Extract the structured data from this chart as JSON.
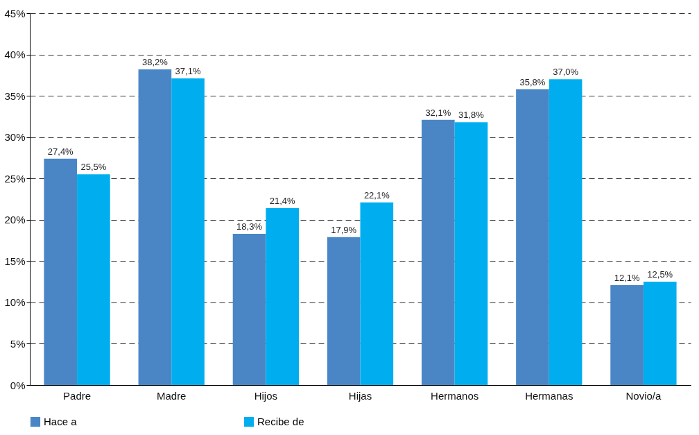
{
  "chart_data": {
    "type": "bar",
    "categories": [
      "Padre",
      "Madre",
      "Hijos",
      "Hijas",
      "Hermanos",
      "Hermanas",
      "Novio/a"
    ],
    "series": [
      {
        "name": "Hace a",
        "color": "#4a86c5",
        "values": [
          27.4,
          38.2,
          18.3,
          17.9,
          32.1,
          35.8,
          12.1
        ],
        "value_labels": [
          "27,4%",
          "38,2%",
          "18,3%",
          "17,9%",
          "32,1%",
          "35,8%",
          "12,1%"
        ]
      },
      {
        "name": "Recibe de",
        "color": "#00aeef",
        "values": [
          25.5,
          37.1,
          21.4,
          22.1,
          31.8,
          37.0,
          12.5
        ],
        "value_labels": [
          "25,5%",
          "37,1%",
          "21,4%",
          "22,1%",
          "31,8%",
          "37,0%",
          "12,5%"
        ]
      }
    ],
    "ylim": [
      0,
      45
    ],
    "yticks": [
      {
        "value": 0,
        "label": "0%"
      },
      {
        "value": 5,
        "label": "5%"
      },
      {
        "value": 10,
        "label": "10%"
      },
      {
        "value": 15,
        "label": "15%"
      },
      {
        "value": 20,
        "label": "20%"
      },
      {
        "value": 25,
        "label": "25%"
      },
      {
        "value": 30,
        "label": "30%"
      },
      {
        "value": 35,
        "label": "35%"
      },
      {
        "value": 40,
        "label": "40%"
      },
      {
        "value": 45,
        "label": "45%"
      }
    ],
    "grid": "y",
    "legend": "bottom"
  }
}
